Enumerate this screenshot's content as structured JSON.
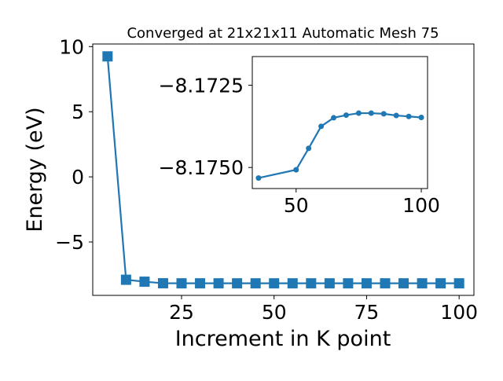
{
  "chart_data": [
    {
      "type": "line",
      "role": "main",
      "title": "Converged at 21x21x11 Automatic Mesh 75",
      "xlabel": "Increment in K point",
      "ylabel": "Energy (eV)",
      "xlim": [
        1,
        104
      ],
      "ylim": [
        -9.1,
        10.2
      ],
      "xticks": [
        25,
        50,
        75,
        100
      ],
      "yticks": [
        10,
        5,
        0,
        -5
      ],
      "yticklabels": [
        "10",
        "5",
        "0",
        "−5"
      ],
      "grid": false,
      "marker": "square",
      "color": "#1f77b4",
      "x": [
        5,
        10,
        15,
        20,
        25,
        30,
        35,
        40,
        45,
        50,
        55,
        60,
        65,
        70,
        75,
        80,
        85,
        90,
        95,
        100
      ],
      "y": [
        9.25,
        -7.9,
        -8.05,
        -8.17,
        -8.175,
        -8.175,
        -8.175,
        -8.175,
        -8.175,
        -8.175,
        -8.175,
        -8.175,
        -8.175,
        -8.175,
        -8.175,
        -8.175,
        -8.175,
        -8.175,
        -8.175,
        -8.175
      ]
    },
    {
      "type": "line",
      "role": "inset",
      "xlim": [
        32.5,
        102.5
      ],
      "ylim": [
        -8.17564,
        -8.17163
      ],
      "xticks": [
        50,
        100
      ],
      "yticks": [
        -8.175,
        -8.1725
      ],
      "yticklabels": [
        "−8.1750",
        "−8.1725"
      ],
      "grid": false,
      "marker": "circle",
      "color": "#1f77b4",
      "x": [
        35,
        50,
        55,
        60,
        65,
        70,
        75,
        80,
        85,
        90,
        95,
        100
      ],
      "y": [
        -8.17532,
        -8.17507,
        -8.17442,
        -8.17375,
        -8.17349,
        -8.17341,
        -8.17335,
        -8.17335,
        -8.17337,
        -8.17342,
        -8.17345,
        -8.17348
      ]
    }
  ]
}
